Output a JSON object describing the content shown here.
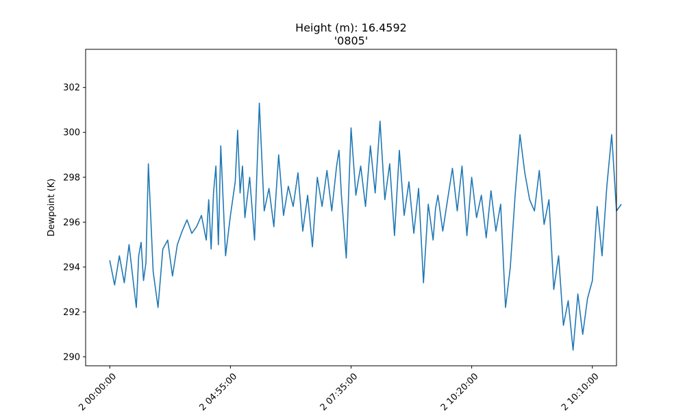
{
  "chart_data": {
    "type": "line",
    "title": "Height (m): 16.4592",
    "subtitle": "'0805'",
    "xlabel": "",
    "ylabel": "Dewpoint (K)",
    "ylim": [
      289.6,
      303.7
    ],
    "xlim": [
      -0.05,
      1.05
    ],
    "grid": false,
    "legend": "none",
    "color": "#1f77b4",
    "y_ticks": [
      290,
      292,
      294,
      296,
      298,
      300,
      302
    ],
    "x_ticks": [
      {
        "pos": 0.0,
        "label": "2 00:00:00"
      },
      {
        "pos": 0.25,
        "label": "2 04:55:00"
      },
      {
        "pos": 0.5,
        "label": "2 07:35:00"
      },
      {
        "pos": 0.75,
        "label": "2 10:20:00"
      },
      {
        "pos": 1.0,
        "label": "2 10:10:00"
      }
    ],
    "series": [
      {
        "x": [
          0.0,
          0.01,
          0.02,
          0.03,
          0.04,
          0.05,
          0.055,
          0.06,
          0.065,
          0.07,
          0.075,
          0.08,
          0.09,
          0.1,
          0.11,
          0.12,
          0.13,
          0.14,
          0.15,
          0.16,
          0.17,
          0.18,
          0.19,
          0.2,
          0.205,
          0.21,
          0.215,
          0.22,
          0.225,
          0.23,
          0.24,
          0.25,
          0.26,
          0.265,
          0.27,
          0.275,
          0.28,
          0.29,
          0.3,
          0.31,
          0.32,
          0.33,
          0.34,
          0.35,
          0.36,
          0.37,
          0.38,
          0.39,
          0.4,
          0.41,
          0.42,
          0.43,
          0.44,
          0.45,
          0.46,
          0.47,
          0.475,
          0.48,
          0.49,
          0.5,
          0.51,
          0.52,
          0.53,
          0.54,
          0.55,
          0.56,
          0.57,
          0.58,
          0.59,
          0.6,
          0.61,
          0.62,
          0.63,
          0.64,
          0.65,
          0.66,
          0.67,
          0.675,
          0.68,
          0.69,
          0.7,
          0.71,
          0.72,
          0.73,
          0.74,
          0.75,
          0.76,
          0.77,
          0.78,
          0.79,
          0.8,
          0.81,
          0.82,
          0.83,
          0.84,
          0.85,
          0.86,
          0.87,
          0.88,
          0.89,
          0.9,
          0.91,
          0.92,
          0.93,
          0.94,
          0.95,
          0.96,
          0.97,
          0.98,
          0.99,
          1.0,
          1.01,
          1.02,
          1.03,
          1.04,
          1.05,
          1.06
        ],
        "y": [
          294.3,
          293.2,
          294.5,
          293.3,
          295.0,
          293.1,
          292.2,
          294.5,
          295.1,
          293.4,
          294.2,
          298.6,
          293.8,
          292.2,
          294.8,
          295.2,
          293.6,
          295.0,
          295.6,
          296.1,
          295.5,
          295.8,
          296.3,
          295.2,
          297.0,
          294.8,
          297.3,
          298.5,
          295.0,
          299.4,
          294.5,
          296.3,
          297.8,
          300.1,
          297.3,
          298.5,
          296.2,
          298.0,
          295.2,
          301.3,
          296.5,
          297.5,
          295.8,
          299.0,
          296.3,
          297.6,
          296.7,
          298.2,
          295.6,
          297.2,
          294.9,
          298.0,
          296.7,
          298.3,
          296.5,
          298.5,
          299.2,
          297.2,
          294.4,
          300.2,
          297.2,
          298.5,
          296.7,
          299.4,
          297.3,
          300.5,
          297.0,
          298.6,
          295.4,
          299.2,
          296.3,
          297.8,
          295.5,
          297.5,
          293.3,
          296.8,
          295.2,
          296.6,
          297.2,
          295.6,
          297.0,
          298.4,
          296.5,
          298.5,
          295.4,
          298.0,
          296.2,
          297.2,
          295.3,
          297.4,
          295.6,
          296.8,
          292.2,
          294.0,
          297.2,
          299.9,
          298.2,
          297.0,
          296.5,
          298.3,
          295.9,
          297.0,
          293.0,
          294.5,
          291.4,
          292.5,
          290.3,
          292.8,
          291.0,
          292.6,
          293.4,
          296.7,
          294.5,
          297.6,
          299.9,
          296.5,
          296.8
        ]
      }
    ]
  }
}
